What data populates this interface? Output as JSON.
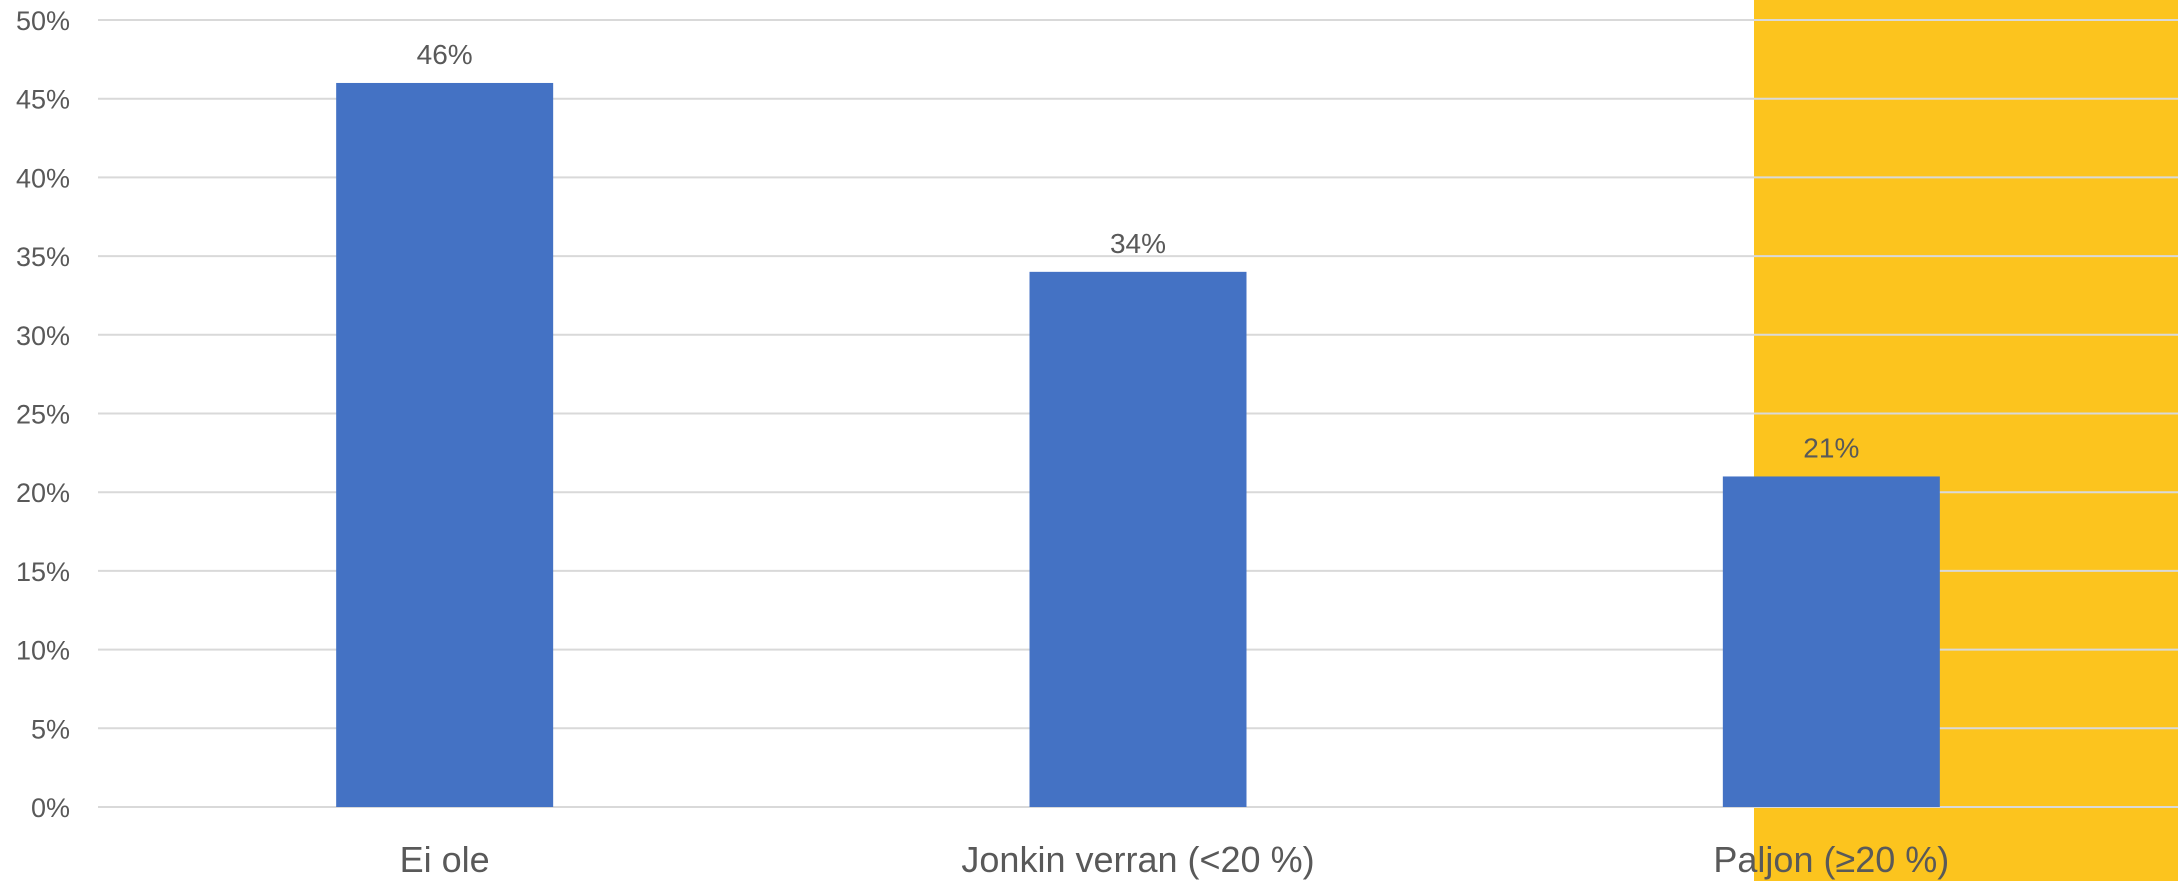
{
  "chart_data": {
    "type": "bar",
    "categories": [
      "Ei ole",
      "Jonkin verran (<20 %)",
      "Paljon (≥20 %)"
    ],
    "values": [
      46,
      34,
      21
    ],
    "value_unit": "%",
    "data_labels": [
      "46%",
      "34%",
      "21%"
    ],
    "ylim": [
      0,
      50
    ],
    "yticks": [
      0,
      5,
      10,
      15,
      20,
      25,
      30,
      35,
      40,
      45,
      50
    ],
    "ytick_labels": [
      "0%",
      "5%",
      "10%",
      "15%",
      "20%",
      "25%",
      "30%",
      "35%",
      "40%",
      "45%",
      "50%"
    ],
    "grid": true,
    "legend": "none",
    "highlight_category": "Paljon (≥20 %)",
    "colors": {
      "bar": "#4472c4",
      "highlight_band": "#fcc41e",
      "grid": "#d9d9d9",
      "text": "#595959",
      "background": "#ffffff"
    }
  }
}
